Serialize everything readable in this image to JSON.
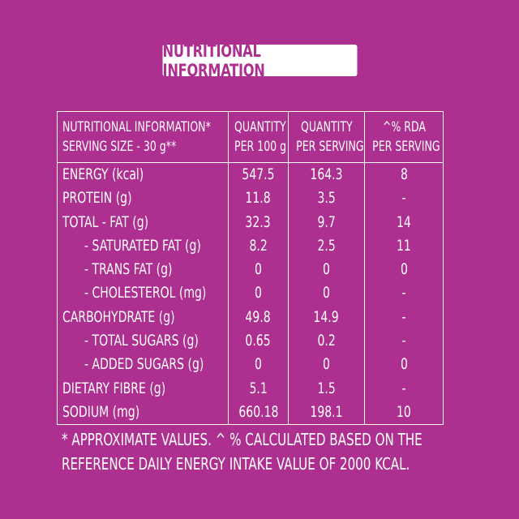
{
  "title": "NUTRITIONAL INFORMATION",
  "header": {
    "col1_line1": "NUTRITIONAL INFORMATION*",
    "col1_line2": "SERVING SIZE - 30 g**",
    "col2_line1": "QUANTITY",
    "col2_line2": "PER 100 g",
    "col3_line1": "QUANTITY",
    "col3_line2": "PER SERVING",
    "col4_line1": "^% RDA",
    "col4_line2": "PER SERVING"
  },
  "rows": [
    {
      "label": "ENERGY (kcal)",
      "per100": "547.5",
      "perServing": "164.3",
      "rda": "8"
    },
    {
      "label": "PROTEIN (g)",
      "per100": "11.8",
      "perServing": "3.5",
      "rda": "-"
    },
    {
      "label": "TOTAL - FAT  (g)",
      "per100": "32.3",
      "perServing": "9.7",
      "rda": "14"
    },
    {
      "label": "- SATURATED FAT (g)",
      "per100": "8.2",
      "perServing": "2.5",
      "rda": "11"
    },
    {
      "label": "- TRANS FAT (g)",
      "per100": "0",
      "perServing": "0",
      "rda": "0"
    },
    {
      "label": "- CHOLESTEROL (mg)",
      "per100": "0",
      "perServing": "0",
      "rda": "-"
    },
    {
      "label": "CARBOHYDRATE (g)",
      "per100": "49.8",
      "perServing": "14.9",
      "rda": "-"
    },
    {
      "label": "- TOTAL SUGARS (g)",
      "per100": "0.65",
      "perServing": "0.2",
      "rda": "-"
    },
    {
      "label": "- ADDED SUGARS (g)",
      "per100": "0",
      "perServing": "0",
      "rda": "0"
    },
    {
      "label": "DIETARY FIBRE (g)",
      "per100": "5.1",
      "perServing": "1.5",
      "rda": "-"
    },
    {
      "label": "SODIUM (mg)",
      "per100": "660.18",
      "perServing": "198.1",
      "rda": "10"
    }
  ],
  "footnote": {
    "line1": "* APPROXIMATE VALUES. ^ % CALCULATED BASED ON THE",
    "line2": "REFERENCE DAILY ENERGY INTAKE VALUE OF 2000 KCAL."
  },
  "colors": {
    "background": "#ad2f8f",
    "text": "#ffffff"
  }
}
